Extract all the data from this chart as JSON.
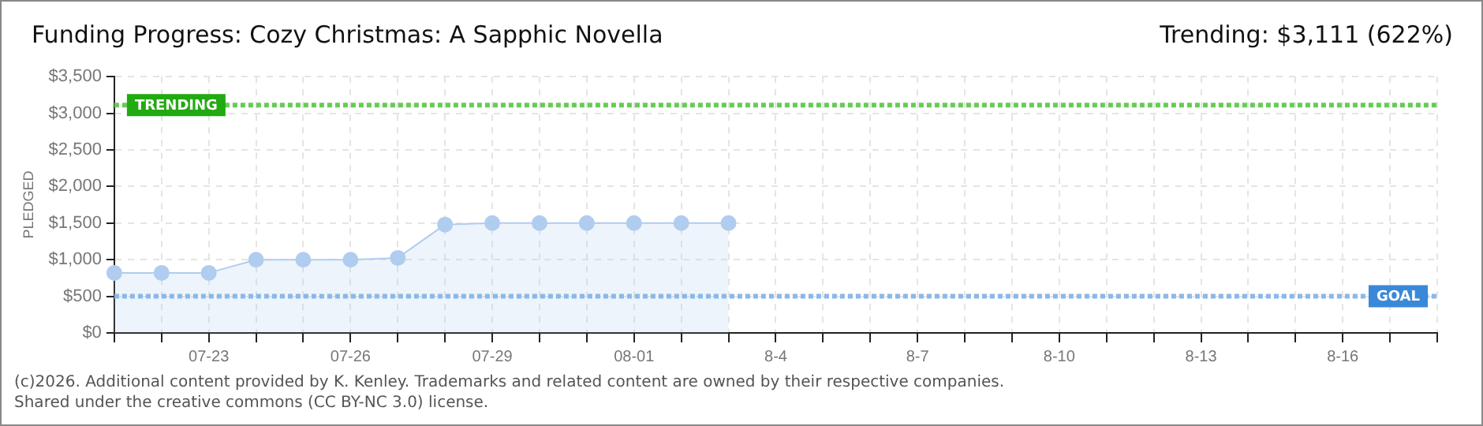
{
  "chart_data": {
    "type": "area",
    "title": "Funding Progress: Cozy Christmas: A Sapphic Novella",
    "subtitle": "Trending: $3,111 (622%)",
    "ylabel": "PLEDGED",
    "categories": [
      null,
      null,
      "07-23",
      null,
      null,
      "07-26",
      null,
      null,
      "07-29",
      null,
      null,
      "08-01",
      null,
      null,
      "8-4",
      null,
      null,
      "8-7",
      null,
      null,
      "8-10",
      null,
      null,
      "8-13",
      null,
      null,
      "8-16",
      null,
      null
    ],
    "series": [
      {
        "color": "#b0cdef",
        "values": [
          820,
          820,
          820,
          1000,
          1000,
          1000,
          1025,
          1480,
          1500,
          1500,
          1500,
          1500,
          1500,
          1500,
          null,
          null,
          null,
          null,
          null,
          null,
          null,
          null,
          null,
          null,
          null,
          null,
          null,
          null,
          null
        ]
      }
    ],
    "ylim": [
      0,
      3500
    ],
    "yticks": [
      {
        "value": 0,
        "label": "$0"
      },
      {
        "value": 500,
        "label": "$500"
      },
      {
        "value": 1000,
        "label": "$1,000"
      },
      {
        "value": 1500,
        "label": "$1,500"
      },
      {
        "value": 2000,
        "label": "$2,000"
      },
      {
        "value": 2500,
        "label": "$2,500"
      },
      {
        "value": 3000,
        "label": "$3,000"
      },
      {
        "value": 3500,
        "label": "$3,500"
      }
    ],
    "ref_lines": [
      {
        "axis": "y",
        "value": 3111,
        "label": "TRENDING",
        "color": "#66cc55",
        "line_style": "dotted"
      },
      {
        "axis": "y",
        "value": 500,
        "label": "GOAL",
        "color": "#8ab8e8",
        "line_style": "dotted"
      }
    ],
    "annotations": [
      "(c)2026. Additional content provided by K. Kenley. Trademarks and related content are owned by their respective companies.",
      "Shared under the creative commons (CC BY-NC 3.0) license."
    ],
    "grid": true,
    "legend": false,
    "marker": "circle",
    "line_style": "solid"
  }
}
